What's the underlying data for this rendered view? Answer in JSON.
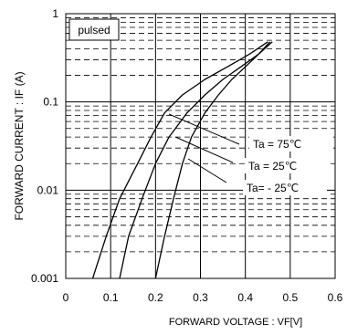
{
  "chart_data": {
    "type": "line",
    "title": "",
    "xlabel": "FORWARD VOLTAGE : VF[V]",
    "ylabel": "FORWARD CURRENT : IF (A)",
    "xlim": [
      0,
      0.6
    ],
    "ylim": [
      0.001,
      1
    ],
    "y_scale": "log",
    "x_ticks": [
      "0",
      "0.1",
      "0.2",
      "0.3",
      "0.4",
      "0.5",
      "0.6"
    ],
    "y_ticks": [
      "0.001",
      "0.01",
      "0.1",
      "1"
    ],
    "grid": true,
    "annotations": [
      "pulsed"
    ],
    "series": [
      {
        "name": "Ta = 75℃",
        "x": [
          0.06,
          0.09,
          0.12,
          0.16,
          0.19,
          0.22,
          0.26,
          0.31,
          0.36,
          0.41,
          0.45
        ],
        "y": [
          0.001,
          0.003,
          0.008,
          0.02,
          0.04,
          0.075,
          0.12,
          0.18,
          0.25,
          0.35,
          0.48
        ]
      },
      {
        "name": "Ta = 25℃",
        "x": [
          0.12,
          0.14,
          0.17,
          0.2,
          0.23,
          0.27,
          0.31,
          0.35,
          0.39,
          0.43,
          0.455
        ],
        "y": [
          0.001,
          0.003,
          0.008,
          0.02,
          0.04,
          0.075,
          0.12,
          0.18,
          0.25,
          0.35,
          0.48
        ]
      },
      {
        "name": "Ta= - 25℃",
        "x": [
          0.2,
          0.22,
          0.24,
          0.26,
          0.28,
          0.31,
          0.34,
          0.37,
          0.4,
          0.43,
          0.46
        ],
        "y": [
          0.001,
          0.003,
          0.008,
          0.02,
          0.04,
          0.075,
          0.12,
          0.18,
          0.25,
          0.35,
          0.48
        ]
      }
    ]
  }
}
